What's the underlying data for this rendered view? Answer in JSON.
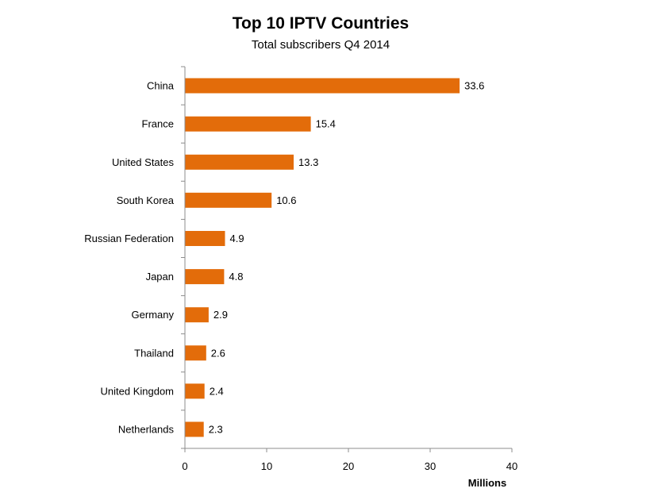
{
  "chart_data": {
    "type": "bar",
    "orientation": "horizontal",
    "title": "Top 10 IPTV Countries",
    "subtitle": "Total subscribers Q4 2014",
    "xlabel": "Millions",
    "ylabel": "",
    "categories": [
      "China",
      "France",
      "United States",
      "South Korea",
      "Russian Federation",
      "Japan",
      "Germany",
      "Thailand",
      "United Kingdom",
      "Netherlands"
    ],
    "values": [
      33.6,
      15.4,
      13.3,
      10.6,
      4.9,
      4.8,
      2.9,
      2.6,
      2.4,
      2.3
    ],
    "data_labels": [
      "33.6",
      "15.4",
      "13.3",
      "10.6",
      "4.9",
      "4.8",
      "2.9",
      "2.6",
      "2.4",
      "2.3"
    ],
    "xlim": [
      0,
      40
    ],
    "x_ticks": [
      "0",
      "10",
      "20",
      "30",
      "40"
    ],
    "grid": false,
    "legend": "none",
    "bar_color": "#e36c0a",
    "axis_color": "#8c8c8c"
  }
}
